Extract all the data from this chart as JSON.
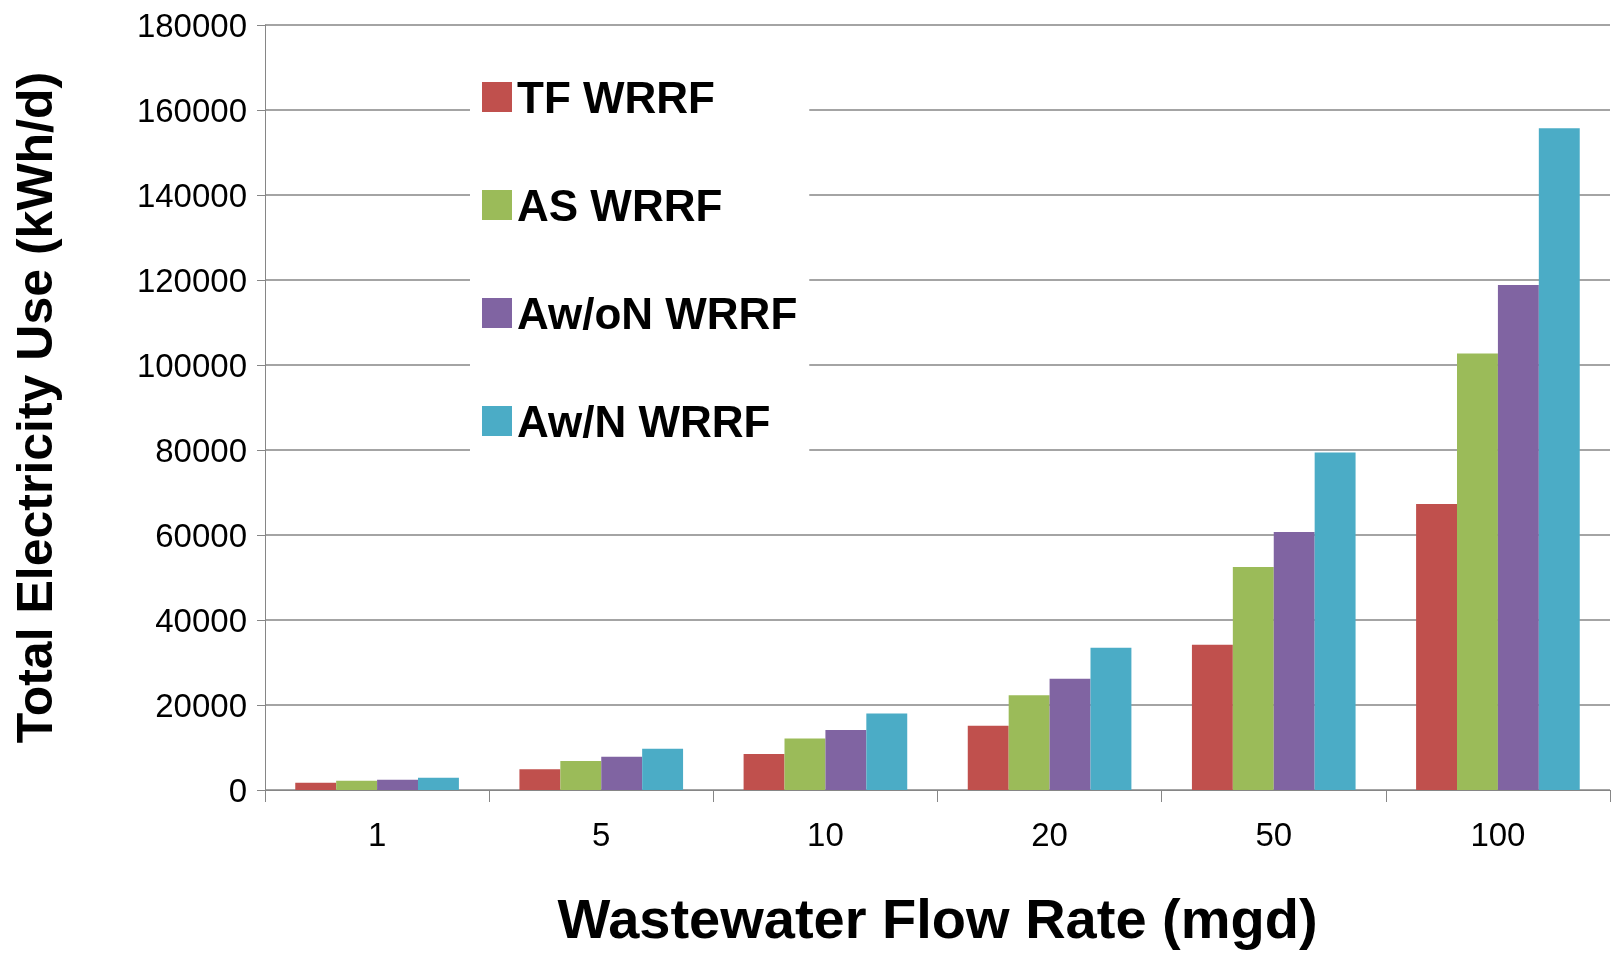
{
  "chart_data": {
    "type": "bar",
    "xlabel": "Wastewater Flow Rate (mgd)",
    "ylabel": "Total Electricity Use (kWh/d)",
    "categories": [
      "1",
      "5",
      "10",
      "20",
      "50",
      "100"
    ],
    "series": [
      {
        "name": "TF WRRF",
        "color": "#c0504d",
        "values": [
          1700,
          4900,
          8500,
          15100,
          34200,
          67300
        ]
      },
      {
        "name": "AS WRRF",
        "color": "#9bbb59",
        "values": [
          2200,
          6800,
          12100,
          22300,
          52500,
          102700
        ]
      },
      {
        "name": "Aw/oN WRRF",
        "color": "#8064a2",
        "values": [
          2400,
          7800,
          14100,
          26200,
          60700,
          118800
        ]
      },
      {
        "name": "Aw/N WRRF",
        "color": "#4bacc6",
        "values": [
          2900,
          9700,
          18000,
          33500,
          79400,
          155700
        ]
      }
    ],
    "ylim": [
      0,
      180000
    ],
    "yticks": [
      0,
      20000,
      40000,
      60000,
      80000,
      100000,
      120000,
      140000,
      160000,
      180000
    ],
    "grid": "y",
    "legend": "top left"
  }
}
